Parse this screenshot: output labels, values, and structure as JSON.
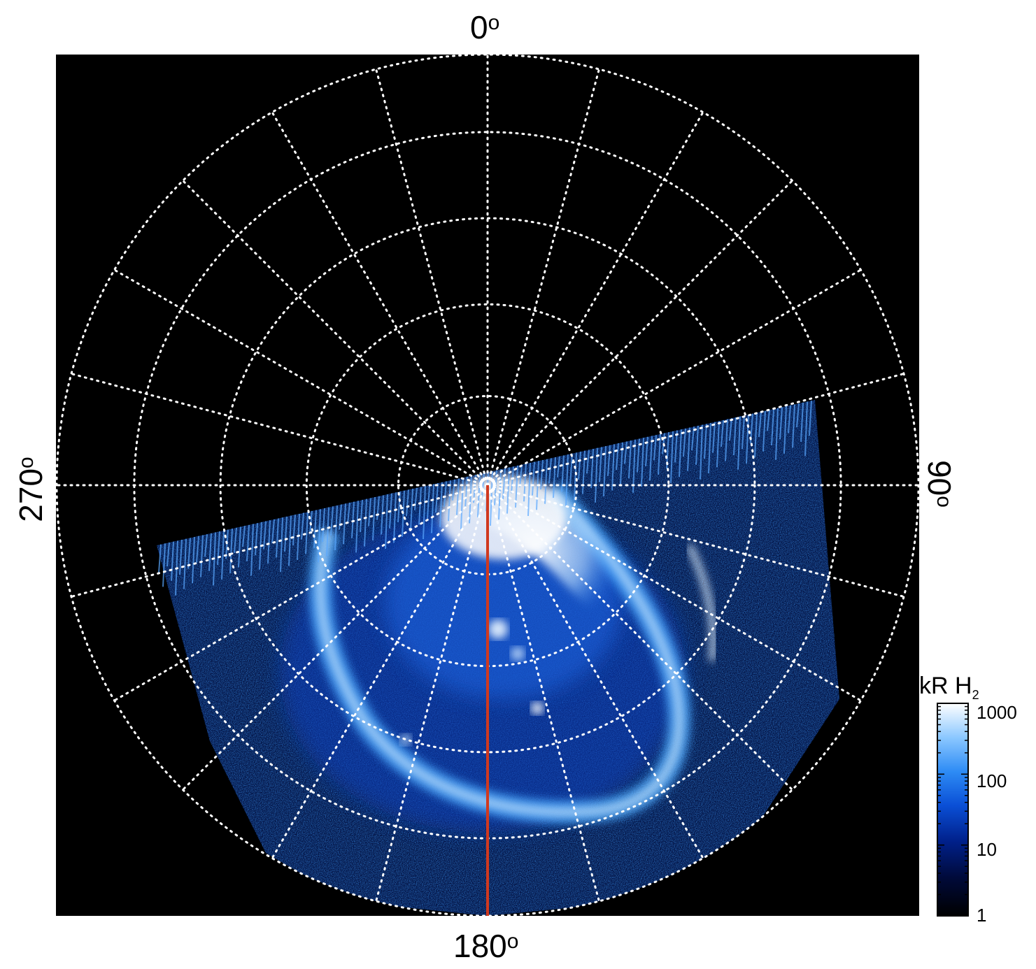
{
  "figure": {
    "longitude_labels": {
      "top": "0",
      "right": "90",
      "bottom": "180",
      "left": "270",
      "degree_symbol": "o"
    },
    "colorbar": {
      "title_main": "kR H",
      "title_sub": "2",
      "scale": "log",
      "range": [
        1,
        1000
      ],
      "ticks": [
        "1000",
        "100",
        "10",
        "1"
      ],
      "colors": [
        "#000000",
        "#000a3a",
        "#00208a",
        "#0a4fd6",
        "#2e8cf5",
        "#8cc8ff",
        "#ffffff"
      ]
    },
    "grid": {
      "style": "dotted",
      "color": "#ffffff",
      "meridian_step_deg": 15,
      "ring_count": 5
    },
    "reference_line": {
      "color": "#d0391f",
      "longitude_deg": 180
    },
    "background": "#000000"
  }
}
